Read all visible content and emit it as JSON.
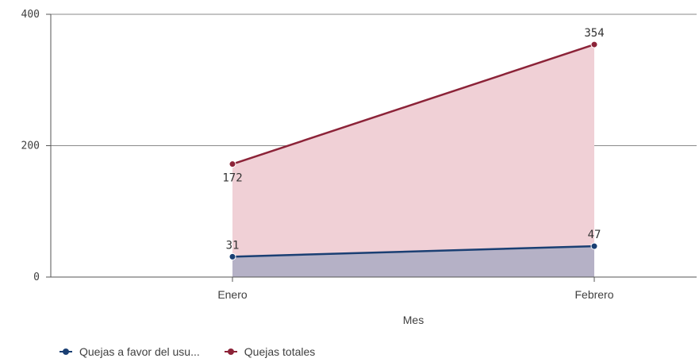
{
  "chart_data": {
    "type": "area",
    "categories": [
      "Enero",
      "Febrero"
    ],
    "series": [
      {
        "name": "Quejas totales",
        "values": [
          172,
          354
        ],
        "color": "#8c2338",
        "fill": "#f0d0d6"
      },
      {
        "name": "Quejas a favor del usu...",
        "values": [
          31,
          47
        ],
        "color": "#1a3f73",
        "fill": "#b5b1c6"
      }
    ],
    "xlabel": "Mes",
    "ylabel": "",
    "ylim": [
      0,
      400
    ],
    "yticks": [
      "0",
      "200",
      "400"
    ],
    "grid": true,
    "legend_position": "bottom-left"
  },
  "legend": [
    {
      "label": "Quejas a favor del usu...",
      "color": "#1a3f73"
    },
    {
      "label": "Quejas totales",
      "color": "#8c2338"
    }
  ]
}
